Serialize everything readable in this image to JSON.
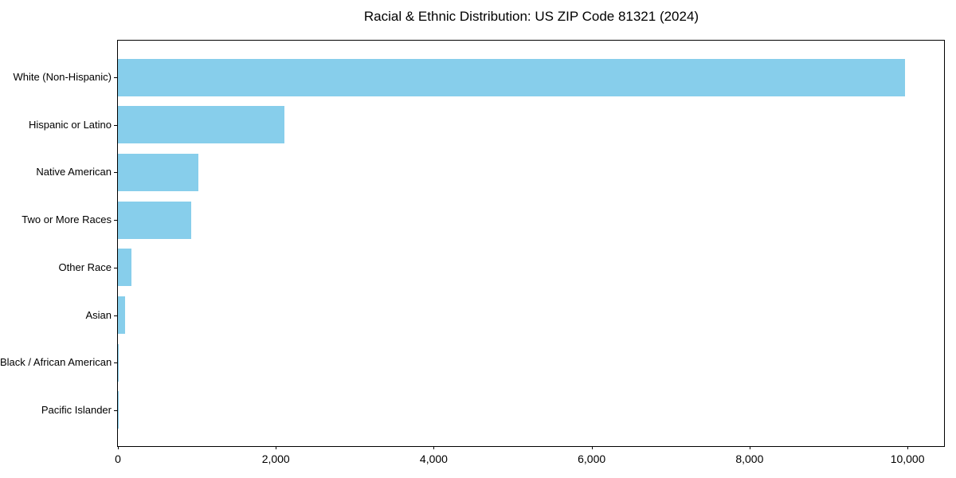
{
  "chart_data": {
    "type": "bar",
    "orientation": "horizontal",
    "title": "Racial & Ethnic Distribution: US ZIP Code 81321 (2024)",
    "categories": [
      "White (Non-Hispanic)",
      "Hispanic or Latino",
      "Native American",
      "Two or More Races",
      "Other Race",
      "Asian",
      "Black / African American",
      "Pacific Islander"
    ],
    "values": [
      9965,
      2110,
      1020,
      925,
      175,
      95,
      12,
      2
    ],
    "bar_color": "#87CEEB",
    "axis_color": "#000000",
    "text_color": "#000000",
    "background_color": "#FFFFFF",
    "xlabel": "",
    "ylabel": "",
    "xlim": [
      0,
      10463
    ],
    "x_ticks": [
      {
        "value": 0,
        "label": "0"
      },
      {
        "value": 2000,
        "label": "2,000"
      },
      {
        "value": 4000,
        "label": "4,000"
      },
      {
        "value": 6000,
        "label": "6,000"
      },
      {
        "value": 8000,
        "label": "8,000"
      },
      {
        "value": 10000,
        "label": "10,000"
      }
    ],
    "grid": false,
    "legend": null
  }
}
